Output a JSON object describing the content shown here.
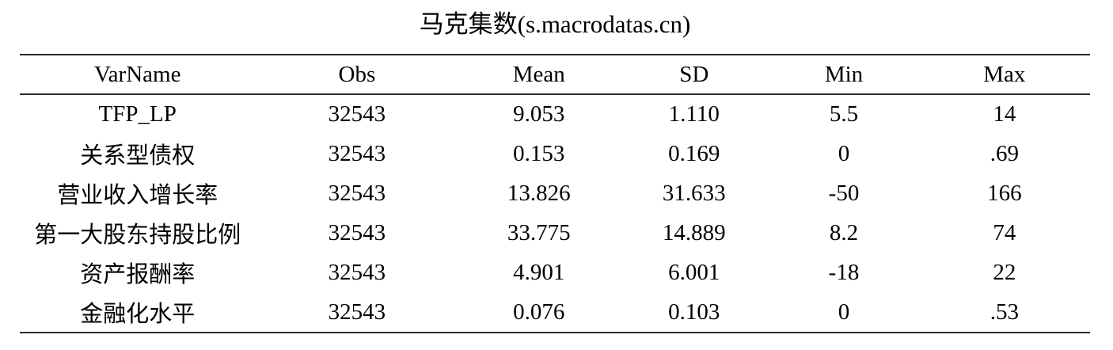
{
  "table": {
    "title": "马克集数(s.macrodatas.cn)",
    "columns": {
      "varname": "VarName",
      "obs": "Obs",
      "mean": "Mean",
      "sd": "SD",
      "min": "Min",
      "max": "Max"
    },
    "rows": [
      {
        "varname": "TFP_LP",
        "obs": "32543",
        "mean": "9.053",
        "sd": "1.110",
        "min": "5.5",
        "max": "14"
      },
      {
        "varname": "关系型债权",
        "obs": "32543",
        "mean": "0.153",
        "sd": "0.169",
        "min": "0",
        "max": ".69"
      },
      {
        "varname": "营业收入增长率",
        "obs": "32543",
        "mean": "13.826",
        "sd": "31.633",
        "min": "-50",
        "max": "166"
      },
      {
        "varname": "第一大股东持股比例",
        "obs": "32543",
        "mean": "33.775",
        "sd": "14.889",
        "min": "8.2",
        "max": "74"
      },
      {
        "varname": "资产报酬率",
        "obs": "32543",
        "mean": "4.901",
        "sd": "6.001",
        "min": "-18",
        "max": "22"
      },
      {
        "varname": "金融化水平",
        "obs": "32543",
        "mean": "0.076",
        "sd": "0.103",
        "min": "0",
        "max": ".53"
      }
    ]
  },
  "colors": {
    "text": "#000000",
    "rule": "#2b2b2b",
    "background": "#ffffff"
  }
}
